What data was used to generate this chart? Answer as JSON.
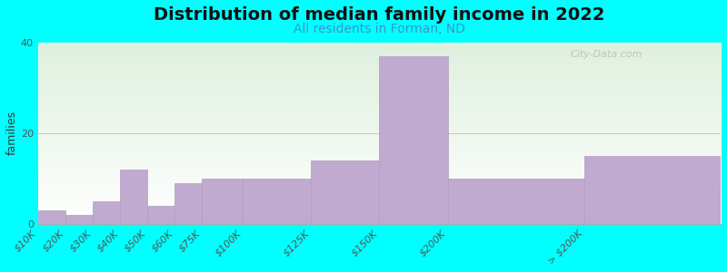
{
  "title": "Distribution of median family income in 2022",
  "subtitle": "All residents in Forman, ND",
  "ylabel": "families",
  "background_color": "#00ffff",
  "bar_color": "#c0aad0",
  "bar_edge_color": "#b09ec0",
  "categories": [
    "$10K",
    "$20K",
    "$30K",
    "$40K",
    "$50K",
    "$60K",
    "$75K",
    "$100K",
    "$125K",
    "$150K",
    "$200K",
    "> $200K"
  ],
  "values": [
    3,
    2,
    5,
    12,
    4,
    9,
    10,
    10,
    14,
    37,
    10,
    15
  ],
  "bin_edges": [
    0,
    10,
    20,
    30,
    40,
    50,
    60,
    75,
    100,
    125,
    150,
    200,
    250
  ],
  "ylim": [
    0,
    40
  ],
  "yticks": [
    0,
    20,
    40
  ],
  "grid_color": "#e8b8b8",
  "title_fontsize": 14,
  "subtitle_fontsize": 10,
  "subtitle_color": "#3399cc",
  "ylabel_fontsize": 9,
  "tick_fontsize": 8,
  "watermark": "City-Data.com"
}
